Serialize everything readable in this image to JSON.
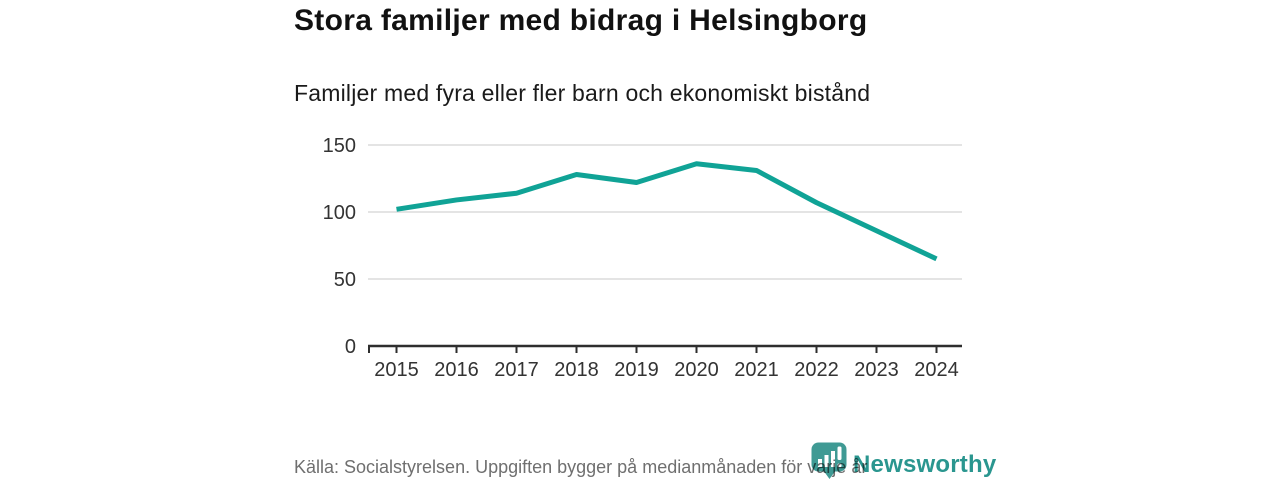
{
  "header": {
    "title": "Stora familjer med bidrag i Helsingborg",
    "subtitle": "Familjer med fyra eller fler barn och ekonomiskt bistånd"
  },
  "chart_data": {
    "type": "line",
    "title": "Stora familjer med bidrag i Helsingborg",
    "subtitle": "Familjer med fyra eller fler barn och ekonomiskt bistånd",
    "x": [
      "2015",
      "2016",
      "2017",
      "2018",
      "2019",
      "2020",
      "2021",
      "2022",
      "2023",
      "2024"
    ],
    "series": [
      {
        "name": "Familjer med fyra eller fler barn och ekonomiskt bistånd",
        "values": [
          102,
          109,
          114,
          128,
          122,
          136,
          131,
          107,
          86,
          65
        ]
      }
    ],
    "xlabel": "",
    "ylabel": "",
    "ylim": [
      0,
      150
    ],
    "yticks": [
      0,
      50,
      100,
      150
    ],
    "grid": "horizontal",
    "legend": "none"
  },
  "footer": {
    "source": "Källa: Socialstyrelsen. Uppgiften bygger på medianmånaden för varje år",
    "brand": {
      "name": "Newsworthy"
    }
  },
  "colors": {
    "line": "#10a396",
    "axis": "#2e2e2e",
    "grid": "#e4e4e4",
    "tick_label": "#333333",
    "brand_teal": "#2a968f",
    "logo_bubble": "#3f9a94"
  }
}
